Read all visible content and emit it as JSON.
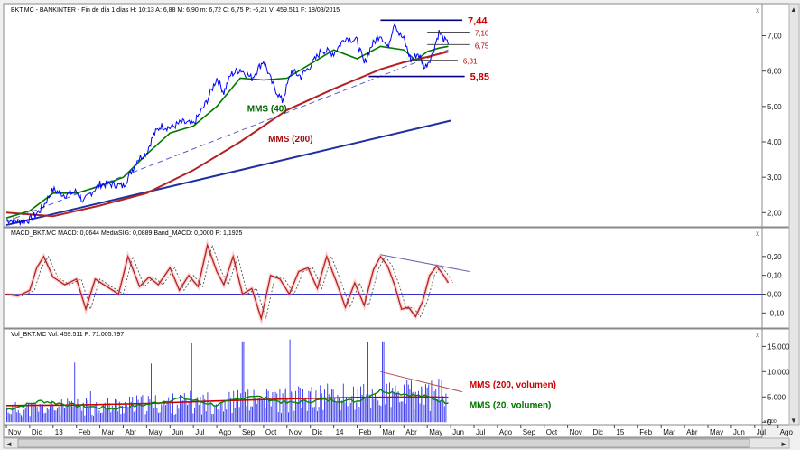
{
  "colors": {
    "price": "#0000ff",
    "mms40": "#007700",
    "mms200": "#b22222",
    "trend": "#1f2fa0",
    "level_red": "#cc0000",
    "level_line": "#000080",
    "macd": "#b22222",
    "macd_glow": "#ff9999",
    "macd_signal": "#555555",
    "zero": "#3333cc",
    "divergence": "#6666aa",
    "volume": "#4444ee",
    "vol_avg200": "#cc0000",
    "vol_avg20": "#008800"
  },
  "ui": {
    "scroll_up": "▲",
    "scroll_down": "▼",
    "scroll_left": "◄",
    "scroll_right": "►",
    "close_glyph": "x",
    "vol_unit": "x1000"
  },
  "chart_data": [
    {
      "type": "line",
      "title": "BKT.MC - BANKINTER - Fin de día 1 días  H: 10:13  A: 6,88  M: 6,90  m: 6,72  C: 6,75  P: -6,21  V: 459.511  F: 18/03/2015",
      "y_ticks": [
        "7,00",
        "6,00",
        "5,00",
        "4,00",
        "3,00",
        "2,00"
      ],
      "ylim": [
        1.6,
        7.6
      ],
      "x_range_months": [
        0,
        22
      ],
      "series": [
        {
          "name": "MMS (40)",
          "x": [
            0.0,
            1.0,
            2.0,
            3.0,
            4.0,
            5.0,
            6.0,
            7.0,
            8.0,
            9.0,
            10.0,
            11.0,
            12.0,
            13.0,
            14.0,
            15.0,
            16.0,
            17.0,
            17.5,
            18.0,
            18.5,
            18.9
          ],
          "values": [
            1.85,
            2.05,
            2.55,
            2.55,
            2.75,
            3.0,
            3.65,
            4.25,
            4.45,
            5.0,
            5.8,
            5.75,
            5.8,
            6.2,
            6.6,
            6.35,
            6.7,
            6.6,
            6.3,
            6.55,
            6.65,
            6.7
          ]
        },
        {
          "name": "MMS (200)",
          "x": [
            0.0,
            2.0,
            4.0,
            6.0,
            8.0,
            10.0,
            12.0,
            14.0,
            16.0,
            17.0,
            18.0,
            18.9
          ],
          "values": [
            2.0,
            1.9,
            2.2,
            2.55,
            3.2,
            4.0,
            4.9,
            5.5,
            6.05,
            6.25,
            6.4,
            6.55
          ]
        },
        {
          "x": [
            0.0,
            0.5,
            1.0,
            1.5,
            2.0,
            2.5,
            3.0,
            3.3,
            3.6,
            4.0,
            4.5,
            5.0,
            5.3,
            5.6,
            6.0,
            6.3,
            6.6,
            7.0,
            7.5,
            8.0,
            8.5,
            9.0,
            9.3,
            9.6,
            10.0,
            10.5,
            11.0,
            11.4,
            11.8,
            12.2,
            12.6,
            13.0,
            13.5,
            14.0,
            14.5,
            15.0,
            15.3,
            15.6,
            16.0,
            16.3,
            16.6,
            16.8,
            17.0,
            17.3,
            17.6,
            17.9,
            18.2,
            18.5,
            18.7,
            18.9
          ],
          "values": [
            1.8,
            1.75,
            1.8,
            2.1,
            2.65,
            2.5,
            2.6,
            2.3,
            2.55,
            2.8,
            2.8,
            2.75,
            3.1,
            3.5,
            3.7,
            4.2,
            4.45,
            4.4,
            4.55,
            4.5,
            5.05,
            5.8,
            5.4,
            5.9,
            6.05,
            5.8,
            6.3,
            5.6,
            5.15,
            6.0,
            5.85,
            6.15,
            6.6,
            6.5,
            6.95,
            6.85,
            6.2,
            6.7,
            7.05,
            6.65,
            7.4,
            7.05,
            6.9,
            6.3,
            6.5,
            6.1,
            6.45,
            7.1,
            6.9,
            6.75
          ]
        }
      ],
      "trendlines": [
        {
          "x": [
            0.0,
            19.0
          ],
          "values": [
            1.65,
            4.6
          ]
        },
        {
          "x": [
            0.0,
            18.9
          ],
          "values": [
            1.75,
            6.6
          ]
        }
      ],
      "levels": [
        {
          "label": "7,44",
          "value": 7.44,
          "x_from": 16.0,
          "x_to": 19.5
        },
        {
          "label": "7,10",
          "value": 7.1,
          "x_from": 18.0,
          "x_to": 19.8
        },
        {
          "label": "6,75",
          "value": 6.75,
          "x_from": 18.0,
          "x_to": 19.8
        },
        {
          "label": "6,31",
          "value": 6.31,
          "x_from": 17.5,
          "x_to": 19.3
        },
        {
          "label": "5,85",
          "value": 5.85,
          "x_from": 15.5,
          "x_to": 19.6
        }
      ],
      "annotations": [
        {
          "text": "MMS (40)",
          "x": 10.3,
          "y": 4.85
        },
        {
          "text": "MMS (200)",
          "x": 11.2,
          "y": 4.0
        }
      ]
    },
    {
      "type": "line",
      "title": "MACD_BKT.MC  MACD: 0,0644  MediaSIG: 0,0889  Band_MACD: 0,0000  P: 1,1925",
      "y_ticks": [
        "0,20",
        "0,10",
        "0,00",
        "-0,10"
      ],
      "y_tick_values": [
        0.2,
        0.1,
        0.0,
        -0.1
      ],
      "ylim": [
        -0.18,
        0.3
      ],
      "series": [
        {
          "x": [
            0.0,
            0.5,
            1.0,
            1.3,
            1.6,
            2.0,
            2.5,
            3.0,
            3.4,
            3.8,
            4.3,
            4.8,
            5.2,
            5.7,
            6.1,
            6.5,
            7.0,
            7.4,
            7.8,
            8.2,
            8.6,
            9.0,
            9.3,
            9.7,
            10.1,
            10.5,
            10.9,
            11.3,
            11.7,
            12.1,
            12.5,
            12.9,
            13.3,
            13.7,
            14.1,
            14.5,
            14.9,
            15.3,
            15.7,
            16.0,
            16.3,
            16.6,
            16.9,
            17.2,
            17.5,
            17.8,
            18.1,
            18.4,
            18.7,
            18.9
          ],
          "values": [
            0.0,
            -0.01,
            0.02,
            0.14,
            0.2,
            0.09,
            0.05,
            0.08,
            -0.08,
            0.08,
            0.04,
            0.0,
            0.2,
            0.04,
            0.09,
            0.05,
            0.14,
            0.02,
            0.1,
            0.04,
            0.26,
            0.12,
            0.05,
            0.2,
            0.0,
            0.03,
            -0.13,
            0.1,
            0.08,
            0.0,
            0.12,
            0.14,
            0.03,
            0.2,
            0.07,
            -0.07,
            0.06,
            -0.06,
            0.13,
            0.2,
            0.15,
            0.05,
            -0.08,
            -0.07,
            -0.12,
            -0.04,
            0.1,
            0.15,
            0.1,
            0.06
          ]
        }
      ],
      "divergence": {
        "x": [
          16.0,
          19.8
        ],
        "values": [
          0.21,
          0.12
        ]
      }
    },
    {
      "type": "bar",
      "title": "Vol_BKT.MC  Vol: 459.511  P: 71.005.797",
      "y_ticks": [
        "15.000",
        "10.000",
        "5.000",
        "0"
      ],
      "y_tick_values": [
        15000,
        10000,
        5000,
        0
      ],
      "ylim": [
        -500,
        16500
      ],
      "categories": [
        "Nov",
        "Dic",
        "13",
        "Feb",
        "Mar",
        "Abr",
        "May",
        "Jun",
        "Jul",
        "Ago",
        "Sep",
        "Oct",
        "Nov",
        "Dic",
        "14",
        "Feb",
        "Mar",
        "Abr",
        "May",
        "Jun",
        "Jul",
        "Ago",
        "Sep",
        "Oct",
        "Nov",
        "Dic",
        "15",
        "Feb",
        "Mar",
        "Abr",
        "May",
        "Jun",
        "Jul",
        "Ago"
      ],
      "series": [
        {
          "name": "MMS (200, volumen)",
          "x": [
            0,
            3,
            6,
            9,
            12,
            15,
            18,
            18.9
          ],
          "values": [
            3300,
            3400,
            3700,
            4200,
            4600,
            4900,
            5000,
            4900
          ]
        },
        {
          "name": "MMS (20, volumen)",
          "x": [
            0,
            1.5,
            3,
            4.5,
            6,
            7.5,
            9,
            10.5,
            12,
            13.5,
            15,
            16,
            17,
            18,
            18.9
          ],
          "values": [
            2500,
            4200,
            3300,
            2700,
            3500,
            4800,
            3400,
            5300,
            3800,
            4400,
            4200,
            6300,
            5600,
            5000,
            3800
          ]
        }
      ],
      "divergence": {
        "x": [
          16.0,
          19.5
        ],
        "values": [
          10000,
          6000
        ]
      }
    }
  ]
}
